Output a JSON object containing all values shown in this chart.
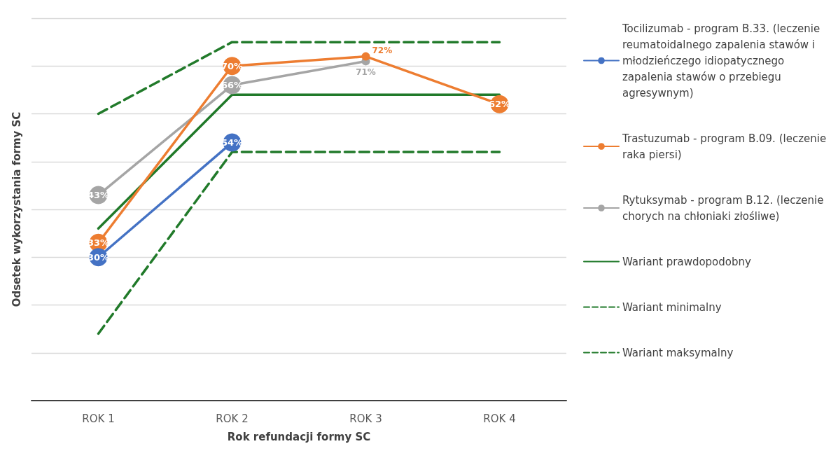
{
  "chart_data": {
    "type": "line",
    "xlabel": "Rok refundacji formy SC",
    "ylabel": "Odsetek wykorzystania formy SC",
    "categories": [
      "ROK 1",
      "ROK 2",
      "ROK 3",
      "ROK 4"
    ],
    "ylim": [
      0,
      80
    ],
    "yticks": [
      {
        "value": 0,
        "label": null
      },
      {
        "value": 10,
        "label": null
      },
      {
        "value": 20,
        "label": null
      },
      {
        "value": 30,
        "label": null
      },
      {
        "value": 40,
        "label": null
      },
      {
        "value": 50,
        "label": null
      },
      {
        "value": 60,
        "label": null
      },
      {
        "value": 70,
        "label": null
      },
      {
        "value": 80,
        "label": null
      }
    ],
    "tick_labels": "x",
    "grid": "y",
    "legend": "right",
    "series": [
      {
        "name": "Tocilizumab - program B.33. (leczenie reumatoidalnego zapalenia stawów i młodzieńczego idiopatycznego zapalenia stawów o przebiegu agresywnym)",
        "color": "#4472c4",
        "values": [
          30,
          54,
          null,
          null
        ],
        "value_labels": [
          "30%",
          "54%",
          null,
          null
        ],
        "marker": "circle",
        "line_style": "solid"
      },
      {
        "name": "Trastuzumab - program B.09. (leczenie raka piersi)",
        "color": "#ed7d31",
        "values": [
          33,
          70,
          72,
          62
        ],
        "value_labels": [
          "33%",
          "70%",
          "72%",
          "62%"
        ],
        "marker": "circle",
        "line_style": "solid"
      },
      {
        "name": "Rytuksymab - program B.12. (leczenie chorych na chłoniaki złośliwe)",
        "color": "#a5a5a5",
        "values": [
          43,
          66,
          71,
          null
        ],
        "value_labels": [
          "43%",
          "66%",
          "71%",
          null
        ],
        "marker": "circle",
        "line_style": "solid"
      },
      {
        "name": "Wariant prawdopodobny",
        "color": "#217a2a",
        "values": [
          36,
          64,
          64,
          64
        ],
        "marker": "none",
        "line_style": "solid"
      },
      {
        "name": "Wariant minimalny",
        "color": "#217a2a",
        "values": [
          14,
          52,
          52,
          52
        ],
        "marker": "none",
        "line_style": "dashed"
      },
      {
        "name": "Wariant maksymalny",
        "color": "#217a2a",
        "values": [
          60,
          75,
          75,
          75
        ],
        "marker": "none",
        "line_style": "dashed"
      }
    ]
  }
}
